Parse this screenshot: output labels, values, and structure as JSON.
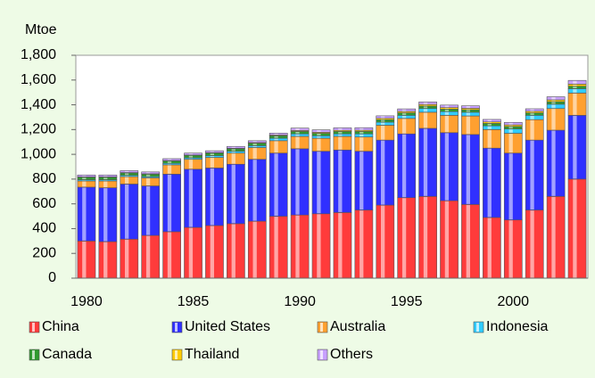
{
  "chart_data": {
    "type": "stacked_bar",
    "y_axis_label": "Mtoe",
    "categories": [
      1980,
      null,
      null,
      null,
      null,
      1985,
      null,
      null,
      null,
      null,
      1990,
      null,
      null,
      null,
      null,
      1995,
      null,
      null,
      null,
      null,
      2000,
      null,
      null,
      null
    ],
    "series": [
      {
        "name": "China",
        "color": "#ff3b3b",
        "values": [
          300,
          295,
          315,
          345,
          375,
          410,
          425,
          440,
          460,
          500,
          510,
          520,
          530,
          550,
          590,
          650,
          660,
          625,
          595,
          490,
          470,
          550,
          660,
          800
        ]
      },
      {
        "name": "United States",
        "color": "#3030ff",
        "values": [
          435,
          435,
          445,
          400,
          465,
          470,
          465,
          480,
          500,
          510,
          535,
          505,
          505,
          475,
          525,
          515,
          550,
          550,
          565,
          560,
          540,
          565,
          535,
          515
        ]
      },
      {
        "name": "Australia",
        "color": "#ffa030",
        "values": [
          50,
          55,
          60,
          65,
          75,
          80,
          85,
          90,
          95,
          100,
          100,
          105,
          110,
          115,
          120,
          125,
          130,
          140,
          150,
          150,
          160,
          165,
          175,
          180
        ]
      },
      {
        "name": "Indonesia",
        "color": "#30ccff",
        "values": [
          10,
          10,
          10,
          10,
          12,
          12,
          15,
          15,
          15,
          20,
          20,
          20,
          20,
          25,
          25,
          25,
          30,
          30,
          30,
          30,
          35,
          35,
          35,
          35
        ]
      },
      {
        "name": "Canada",
        "color": "#2f9a2f",
        "values": [
          20,
          20,
          20,
          20,
          20,
          20,
          20,
          20,
          20,
          20,
          20,
          20,
          20,
          20,
          20,
          20,
          20,
          20,
          20,
          20,
          20,
          20,
          20,
          20
        ]
      },
      {
        "name": "Thailand",
        "color": "#ffcc00",
        "values": [
          3,
          3,
          3,
          3,
          3,
          3,
          4,
          4,
          5,
          6,
          7,
          8,
          9,
          10,
          11,
          12,
          13,
          13,
          12,
          12,
          13,
          13,
          15,
          17
        ]
      },
      {
        "name": "Others",
        "color": "#c8a0ff",
        "values": [
          15,
          15,
          15,
          15,
          15,
          15,
          15,
          15,
          15,
          15,
          20,
          20,
          20,
          20,
          20,
          20,
          20,
          20,
          20,
          20,
          20,
          20,
          25,
          30
        ]
      }
    ],
    "ylim": [
      0,
      1800
    ],
    "yticks": [
      0,
      200,
      400,
      600,
      800,
      {
        "value": 1000,
        "label": "1,000"
      },
      {
        "value": 1200,
        "label": "1,200"
      },
      {
        "value": 1400,
        "label": "1,400"
      },
      {
        "value": 1600,
        "label": "1,600"
      },
      {
        "value": 1800,
        "label": "1,800"
      }
    ],
    "grid": false
  }
}
